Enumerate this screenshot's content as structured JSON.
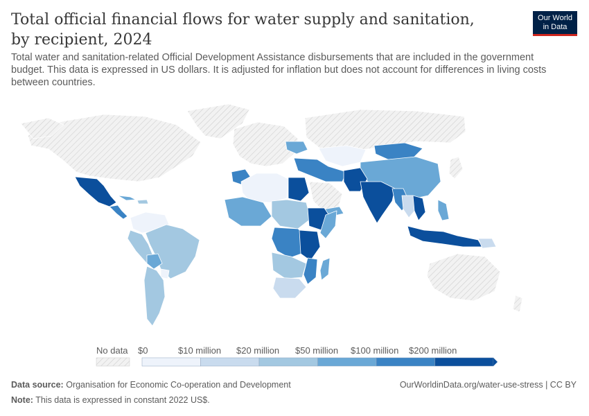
{
  "header": {
    "title": "Total official financial flows for water supply and sanitation, by recipient, 2024",
    "subtitle": "Total water and sanitation-related Official Development Assistance disbursements that are included in the government budget. This data is expressed in US dollars. It is adjusted for inflation but does not account for differences in living costs between countries."
  },
  "logo": {
    "line1": "Our World",
    "line2": "in Data"
  },
  "legend": {
    "no_data_label": "No data",
    "bins": [
      {
        "label": "$0",
        "color": "#eef3fb"
      },
      {
        "label": "$10 million",
        "color": "#c9dbee"
      },
      {
        "label": "$20 million",
        "color": "#a3c8e1"
      },
      {
        "label": "$50 million",
        "color": "#6aa8d6"
      },
      {
        "label": "$100 million",
        "color": "#3a83c4"
      },
      {
        "label": "$200 million",
        "color": "#0b4f9c"
      }
    ]
  },
  "footer": {
    "source_label": "Data source:",
    "source_text": "Organisation for Economic Co-operation and Development",
    "url": "OurWorldinData.org/water-use-stress | CC BY",
    "note_label": "Note:",
    "note_text": "This data is expressed in constant 2022 US$."
  },
  "colors": {
    "no_data_fill": "#f2f2f2",
    "no_data_hatch": "#cfcfcf",
    "border": "#ffffff"
  }
}
